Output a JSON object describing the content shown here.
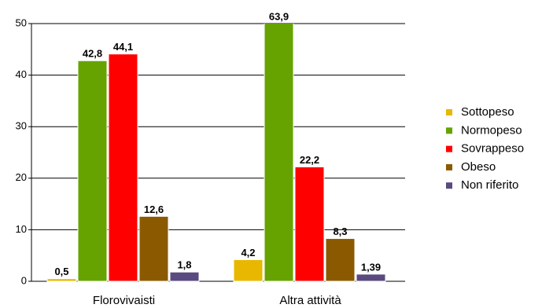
{
  "chart_data": {
    "type": "bar",
    "categories": [
      "Florovivaisti",
      "Altra attività"
    ],
    "series": [
      {
        "name": "Sottopeso",
        "color": "#e8b800",
        "values": [
          0.5,
          4.2
        ],
        "value_labels": [
          "0,5",
          "4,2"
        ]
      },
      {
        "name": "Normopeso",
        "color": "#66a300",
        "values": [
          42.8,
          63.9
        ],
        "value_labels": [
          "42,8",
          "63,9"
        ]
      },
      {
        "name": "Sovrappeso",
        "color": "#ff0000",
        "values": [
          44.1,
          22.2
        ],
        "value_labels": [
          "44,1",
          "22,2"
        ]
      },
      {
        "name": "Obeso",
        "color": "#8b5a00",
        "values": [
          12.6,
          8.3
        ],
        "value_labels": [
          "12,6",
          "8,3"
        ]
      },
      {
        "name": "Non riferito",
        "color": "#5a4a80",
        "values": [
          1.8,
          1.39
        ],
        "value_labels": [
          "1,8",
          "1,39"
        ]
      }
    ],
    "ylim": [
      0,
      50
    ],
    "yticks": [
      0,
      10,
      20,
      30,
      40,
      50
    ],
    "grid": true,
    "legend": "right"
  }
}
